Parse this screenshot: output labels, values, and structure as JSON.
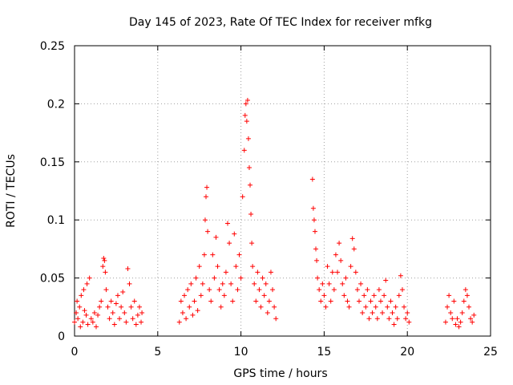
{
  "chart_data": {
    "type": "scatter",
    "title": "Day 145 of 2023, Rate Of TEC Index for receiver mfkg",
    "xlabel": "GPS time / hours",
    "ylabel": "ROTI / TECUs",
    "xlim": [
      0,
      25
    ],
    "ylim": [
      0,
      0.25
    ],
    "xticks": [
      "0",
      "5",
      "10",
      "15",
      "20",
      "25"
    ],
    "yticks": [
      "0",
      "0.05",
      "0.1",
      "0.15",
      "0.2",
      "0.25"
    ],
    "grid": true,
    "marker": "plus",
    "color": "#ff0000",
    "series": [
      {
        "points": [
          [
            0.0,
            0.012
          ],
          [
            0.1,
            0.02
          ],
          [
            0.15,
            0.03
          ],
          [
            0.2,
            0.015
          ],
          [
            0.3,
            0.025
          ],
          [
            0.35,
            0.008
          ],
          [
            0.4,
            0.035
          ],
          [
            0.5,
            0.012
          ],
          [
            0.55,
            0.04
          ],
          [
            0.6,
            0.022
          ],
          [
            0.7,
            0.018
          ],
          [
            0.75,
            0.045
          ],
          [
            0.8,
            0.01
          ],
          [
            0.9,
            0.05
          ],
          [
            1.0,
            0.015
          ],
          [
            1.1,
            0.012
          ],
          [
            1.2,
            0.02
          ],
          [
            1.3,
            0.008
          ],
          [
            1.4,
            0.018
          ],
          [
            1.5,
            0.025
          ],
          [
            1.6,
            0.03
          ],
          [
            1.7,
            0.06
          ],
          [
            1.75,
            0.067
          ],
          [
            1.8,
            0.065
          ],
          [
            1.85,
            0.055
          ],
          [
            1.9,
            0.04
          ],
          [
            2.0,
            0.025
          ],
          [
            2.1,
            0.015
          ],
          [
            2.2,
            0.03
          ],
          [
            2.3,
            0.02
          ],
          [
            2.4,
            0.01
          ],
          [
            2.5,
            0.028
          ],
          [
            2.6,
            0.035
          ],
          [
            2.7,
            0.015
          ],
          [
            2.8,
            0.025
          ],
          [
            2.9,
            0.038
          ],
          [
            3.0,
            0.02
          ],
          [
            3.1,
            0.012
          ],
          [
            3.2,
            0.058
          ],
          [
            3.3,
            0.045
          ],
          [
            3.4,
            0.025
          ],
          [
            3.5,
            0.015
          ],
          [
            3.6,
            0.03
          ],
          [
            3.7,
            0.01
          ],
          [
            3.8,
            0.018
          ],
          [
            3.9,
            0.025
          ],
          [
            4.0,
            0.012
          ],
          [
            4.05,
            0.02
          ],
          [
            6.3,
            0.012
          ],
          [
            6.4,
            0.03
          ],
          [
            6.5,
            0.02
          ],
          [
            6.6,
            0.035
          ],
          [
            6.7,
            0.015
          ],
          [
            6.8,
            0.04
          ],
          [
            6.9,
            0.025
          ],
          [
            7.0,
            0.045
          ],
          [
            7.1,
            0.018
          ],
          [
            7.2,
            0.03
          ],
          [
            7.3,
            0.05
          ],
          [
            7.4,
            0.022
          ],
          [
            7.5,
            0.06
          ],
          [
            7.6,
            0.035
          ],
          [
            7.7,
            0.045
          ],
          [
            7.8,
            0.07
          ],
          [
            7.85,
            0.1
          ],
          [
            7.9,
            0.12
          ],
          [
            7.95,
            0.128
          ],
          [
            8.0,
            0.09
          ],
          [
            8.1,
            0.04
          ],
          [
            8.2,
            0.03
          ],
          [
            8.3,
            0.07
          ],
          [
            8.4,
            0.05
          ],
          [
            8.5,
            0.085
          ],
          [
            8.6,
            0.06
          ],
          [
            8.7,
            0.04
          ],
          [
            8.8,
            0.025
          ],
          [
            8.9,
            0.045
          ],
          [
            9.0,
            0.035
          ],
          [
            9.1,
            0.055
          ],
          [
            9.2,
            0.097
          ],
          [
            9.3,
            0.08
          ],
          [
            9.4,
            0.045
          ],
          [
            9.5,
            0.03
          ],
          [
            9.6,
            0.088
          ],
          [
            9.7,
            0.06
          ],
          [
            9.8,
            0.04
          ],
          [
            9.9,
            0.07
          ],
          [
            10.0,
            0.05
          ],
          [
            10.1,
            0.12
          ],
          [
            10.2,
            0.16
          ],
          [
            10.25,
            0.19
          ],
          [
            10.3,
            0.2
          ],
          [
            10.35,
            0.185
          ],
          [
            10.4,
            0.203
          ],
          [
            10.45,
            0.17
          ],
          [
            10.5,
            0.145
          ],
          [
            10.55,
            0.13
          ],
          [
            10.6,
            0.105
          ],
          [
            10.65,
            0.08
          ],
          [
            10.7,
            0.06
          ],
          [
            10.8,
            0.045
          ],
          [
            10.9,
            0.03
          ],
          [
            11.0,
            0.055
          ],
          [
            11.1,
            0.04
          ],
          [
            11.2,
            0.025
          ],
          [
            11.3,
            0.05
          ],
          [
            11.4,
            0.035
          ],
          [
            11.5,
            0.045
          ],
          [
            11.6,
            0.02
          ],
          [
            11.7,
            0.03
          ],
          [
            11.8,
            0.055
          ],
          [
            11.9,
            0.04
          ],
          [
            12.0,
            0.025
          ],
          [
            12.1,
            0.015
          ],
          [
            14.3,
            0.135
          ],
          [
            14.35,
            0.11
          ],
          [
            14.4,
            0.1
          ],
          [
            14.45,
            0.09
          ],
          [
            14.5,
            0.075
          ],
          [
            14.55,
            0.065
          ],
          [
            14.6,
            0.05
          ],
          [
            14.7,
            0.04
          ],
          [
            14.8,
            0.03
          ],
          [
            14.9,
            0.045
          ],
          [
            15.0,
            0.035
          ],
          [
            15.1,
            0.025
          ],
          [
            15.2,
            0.06
          ],
          [
            15.3,
            0.045
          ],
          [
            15.4,
            0.03
          ],
          [
            15.5,
            0.055
          ],
          [
            15.6,
            0.04
          ],
          [
            15.7,
            0.07
          ],
          [
            15.8,
            0.055
          ],
          [
            15.9,
            0.08
          ],
          [
            16.0,
            0.065
          ],
          [
            16.1,
            0.045
          ],
          [
            16.2,
            0.035
          ],
          [
            16.3,
            0.05
          ],
          [
            16.4,
            0.03
          ],
          [
            16.5,
            0.025
          ],
          [
            16.6,
            0.06
          ],
          [
            16.7,
            0.084
          ],
          [
            16.8,
            0.075
          ],
          [
            16.9,
            0.055
          ],
          [
            17.0,
            0.04
          ],
          [
            17.1,
            0.03
          ],
          [
            17.2,
            0.045
          ],
          [
            17.3,
            0.02
          ],
          [
            17.4,
            0.035
          ],
          [
            17.5,
            0.025
          ],
          [
            17.6,
            0.04
          ],
          [
            17.7,
            0.015
          ],
          [
            17.8,
            0.03
          ],
          [
            17.9,
            0.02
          ],
          [
            18.0,
            0.035
          ],
          [
            18.1,
            0.025
          ],
          [
            18.2,
            0.015
          ],
          [
            18.3,
            0.04
          ],
          [
            18.4,
            0.03
          ],
          [
            18.5,
            0.02
          ],
          [
            18.6,
            0.035
          ],
          [
            18.7,
            0.048
          ],
          [
            18.8,
            0.025
          ],
          [
            18.9,
            0.015
          ],
          [
            19.0,
            0.03
          ],
          [
            19.1,
            0.02
          ],
          [
            19.2,
            0.01
          ],
          [
            19.3,
            0.025
          ],
          [
            19.4,
            0.015
          ],
          [
            19.5,
            0.035
          ],
          [
            19.6,
            0.052
          ],
          [
            19.7,
            0.04
          ],
          [
            19.8,
            0.025
          ],
          [
            19.9,
            0.015
          ],
          [
            20.0,
            0.02
          ],
          [
            20.1,
            0.012
          ],
          [
            22.3,
            0.012
          ],
          [
            22.4,
            0.025
          ],
          [
            22.5,
            0.035
          ],
          [
            22.6,
            0.02
          ],
          [
            22.7,
            0.015
          ],
          [
            22.8,
            0.03
          ],
          [
            22.9,
            0.01
          ],
          [
            23.0,
            0.015
          ],
          [
            23.1,
            0.008
          ],
          [
            23.2,
            0.012
          ],
          [
            23.3,
            0.02
          ],
          [
            23.4,
            0.03
          ],
          [
            23.5,
            0.04
          ],
          [
            23.6,
            0.035
          ],
          [
            23.7,
            0.025
          ],
          [
            23.8,
            0.015
          ],
          [
            23.9,
            0.012
          ],
          [
            24.0,
            0.018
          ]
        ]
      }
    ]
  }
}
